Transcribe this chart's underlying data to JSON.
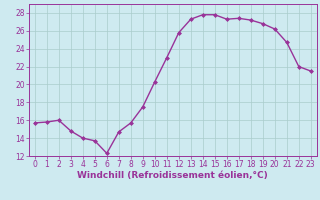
{
  "x": [
    0,
    1,
    2,
    3,
    4,
    5,
    6,
    7,
    8,
    9,
    10,
    11,
    12,
    13,
    14,
    15,
    16,
    17,
    18,
    19,
    20,
    21,
    22,
    23
  ],
  "y": [
    15.7,
    15.8,
    16.0,
    14.8,
    14.0,
    13.7,
    12.3,
    14.7,
    15.7,
    17.5,
    20.3,
    23.0,
    25.8,
    27.3,
    27.8,
    27.8,
    27.3,
    27.4,
    27.2,
    26.8,
    26.2,
    24.7,
    22.0,
    21.5
  ],
  "line_color": "#993399",
  "marker": "D",
  "marker_size": 2,
  "linewidth": 1.0,
  "xlabel": "Windchill (Refroidissement éolien,°C)",
  "xlabel_fontsize": 6.5,
  "ylim": [
    12,
    29
  ],
  "xlim": [
    -0.5,
    23.5
  ],
  "yticks": [
    12,
    14,
    16,
    18,
    20,
    22,
    24,
    26,
    28
  ],
  "xticks": [
    0,
    1,
    2,
    3,
    4,
    5,
    6,
    7,
    8,
    9,
    10,
    11,
    12,
    13,
    14,
    15,
    16,
    17,
    18,
    19,
    20,
    21,
    22,
    23
  ],
  "background_color": "#ceeaf0",
  "grid_color": "#aacccc",
  "tick_color": "#993399",
  "tick_labelsize": 5.5
}
